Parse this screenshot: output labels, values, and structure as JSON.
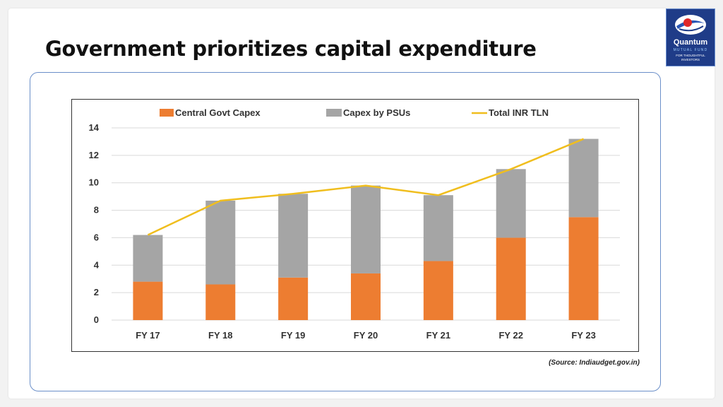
{
  "title": "Government prioritizes capital expenditure",
  "logo": {
    "brand": "Quantum",
    "sub": "MUTUAL FUND",
    "tagline": "FOR THOUGHTFUL INVESTORS"
  },
  "source": "(Source: Indiaudget.gov.in)",
  "colors": {
    "central": "#ed7d31",
    "psu": "#a5a5a5",
    "total": "#f0be1e"
  },
  "chart_data": {
    "type": "bar",
    "stacked": true,
    "categories": [
      "FY 17",
      "FY 18",
      "FY 19",
      "FY 20",
      "FY 21",
      "FY 22",
      "FY 23"
    ],
    "series": [
      {
        "name": "Central Govt Capex",
        "type": "bar",
        "values": [
          2.8,
          2.6,
          3.1,
          3.4,
          4.3,
          6.0,
          7.5
        ]
      },
      {
        "name": "Capex by PSUs",
        "type": "bar",
        "values": [
          3.4,
          6.1,
          6.1,
          6.4,
          4.8,
          5.0,
          5.7
        ]
      },
      {
        "name": "Total INR TLN",
        "type": "line",
        "values": [
          6.2,
          8.7,
          9.2,
          9.8,
          9.1,
          11.0,
          13.2
        ]
      }
    ],
    "ylim": [
      0,
      14
    ],
    "yticks": [
      "0",
      "2",
      "4",
      "6",
      "8",
      "10",
      "12",
      "14"
    ],
    "grid": true,
    "legend": "top"
  }
}
